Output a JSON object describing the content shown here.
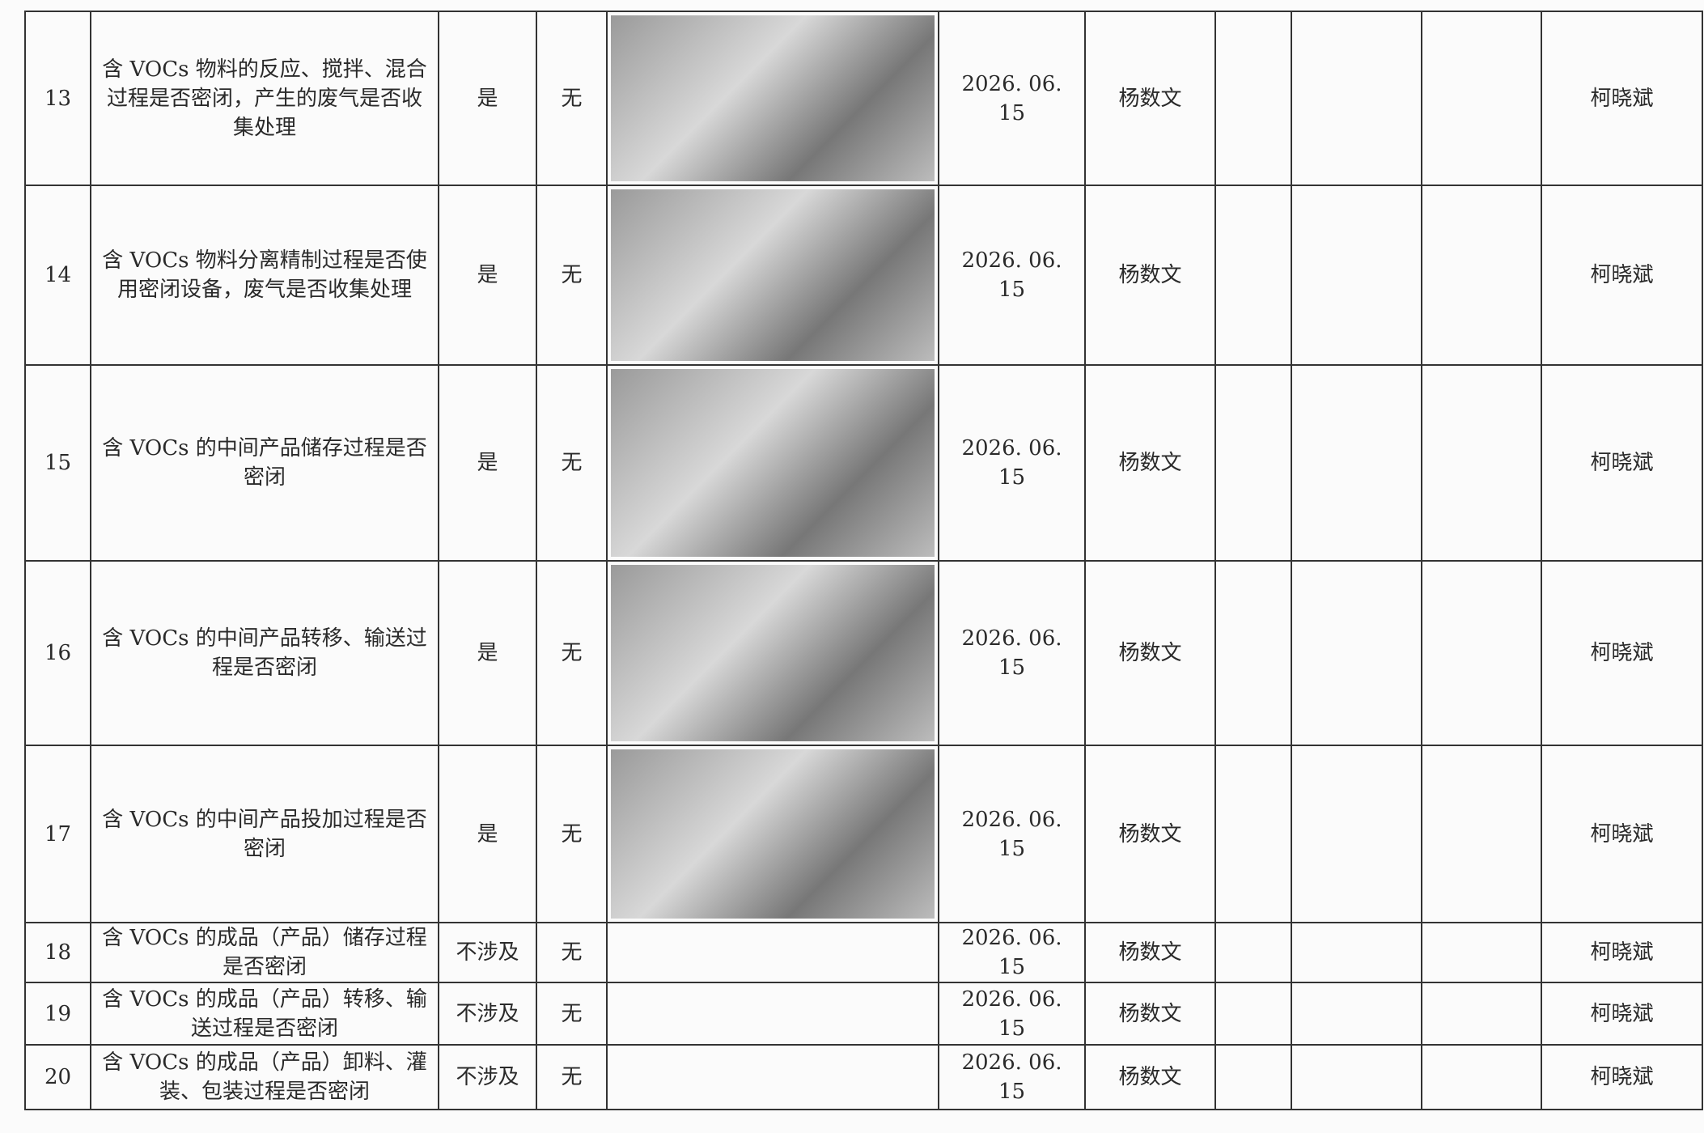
{
  "table": {
    "rows": [
      {
        "no": "13",
        "item": "含 VOCs 物料的反应、搅拌、混合过程是否密闭，产生的废气是否收集处理",
        "status": "是",
        "issue": "无",
        "date": "2026. 06. 15",
        "inspector": "杨数文",
        "reviewer": "柯晓斌"
      },
      {
        "no": "14",
        "item": "含 VOCs 物料分离精制过程是否使用密闭设备，废气是否收集处理",
        "status": "是",
        "issue": "无",
        "date": "2026. 06. 15",
        "inspector": "杨数文",
        "reviewer": "柯晓斌"
      },
      {
        "no": "15",
        "item": "含 VOCs 的中间产品储存过程是否密闭",
        "status": "是",
        "issue": "无",
        "date": "2026. 06. 15",
        "inspector": "杨数文",
        "reviewer": "柯晓斌"
      },
      {
        "no": "16",
        "item": "含 VOCs 的中间产品转移、输送过程是否密闭",
        "status": "是",
        "issue": "无",
        "date": "2026. 06. 15",
        "inspector": "杨数文",
        "reviewer": "柯晓斌"
      },
      {
        "no": "17",
        "item": "含 VOCs 的中间产品投加过程是否密闭",
        "status": "是",
        "issue": "无",
        "date": "2026. 06. 15",
        "inspector": "杨数文",
        "reviewer": "柯晓斌"
      },
      {
        "no": "18",
        "item": "含 VOCs 的成品（产品）储存过程是否密闭",
        "status": "不涉及",
        "issue": "无",
        "date": "2026. 06. 15",
        "inspector": "杨数文",
        "reviewer": "柯晓斌"
      },
      {
        "no": "19",
        "item": "含 VOCs 的成品（产品）转移、输送过程是否密闭",
        "status": "不涉及",
        "issue": "无",
        "date": "2026. 06. 15",
        "inspector": "杨数文",
        "reviewer": "柯晓斌"
      },
      {
        "no": "20",
        "item": "含 VOCs 的成品（产品）卸料、灌装、包装过程是否密闭",
        "status": "不涉及",
        "issue": "无",
        "date": "2026. 06. 15",
        "inspector": "杨数文",
        "reviewer": "柯晓斌"
      }
    ]
  }
}
